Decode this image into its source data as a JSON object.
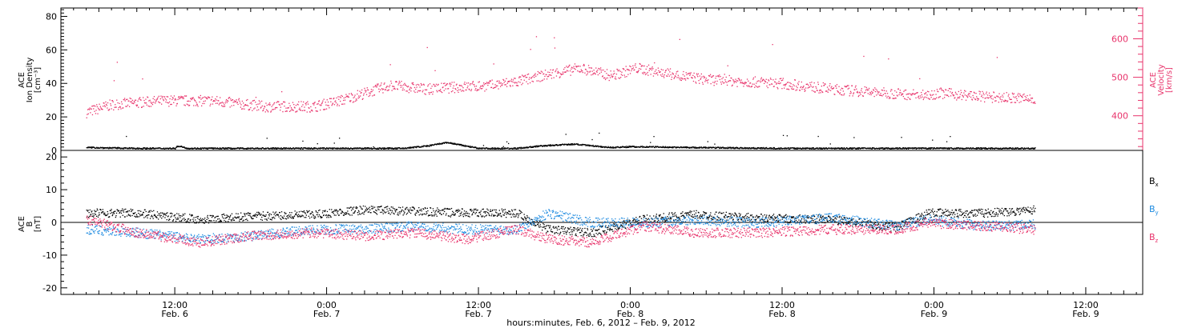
{
  "colors": {
    "black": "#000000",
    "pink": "#e8336b",
    "blue": "#1f8be0",
    "axis": "#000000"
  },
  "chart_data": [
    {
      "type": "scatter",
      "panel": "top",
      "ylabel_lines": [
        "ACE",
        "Ion Density",
        "[cm⁻³]"
      ],
      "ylabel_right_lines": [
        "ACE",
        "Velocity",
        "[km/s]"
      ],
      "ylim_left": [
        0,
        85
      ],
      "yticks_left": [
        0,
        20,
        40,
        60,
        80
      ],
      "ylim_right": [
        310,
        680
      ],
      "yticks_right": [
        400,
        500,
        600
      ],
      "series": [
        {
          "key": "density",
          "color": "black",
          "points": [
            [
              "2012-02-06T05:00",
              2
            ],
            [
              "2012-02-06T09:00",
              1.5
            ],
            [
              "2012-02-06T12:00",
              1.5
            ],
            [
              "2012-02-06T12:15",
              3
            ],
            [
              "2012-02-06T13:00",
              1.5
            ],
            [
              "2012-02-06T18:00",
              1.5
            ],
            [
              "2012-02-07T00:00",
              1.5
            ],
            [
              "2012-02-07T03:00",
              1.5
            ],
            [
              "2012-02-07T06:00",
              1.5
            ],
            [
              "2012-02-07T08:00",
              3
            ],
            [
              "2012-02-07T09:30",
              5
            ],
            [
              "2012-02-07T12:00",
              1.5
            ],
            [
              "2012-02-07T15:00",
              1.5
            ],
            [
              "2012-02-07T17:00",
              3
            ],
            [
              "2012-02-07T19:30",
              4
            ],
            [
              "2012-02-07T22:30",
              2
            ],
            [
              "2012-02-08T00:00",
              2.5
            ],
            [
              "2012-02-08T05:00",
              2
            ],
            [
              "2012-02-08T12:00",
              1.5
            ],
            [
              "2012-02-08T16:30",
              1.5
            ],
            [
              "2012-02-08T23:30",
              1.5
            ],
            [
              "2012-02-09T08:00",
              1.5
            ]
          ]
        }
      ],
      "velocity_series": {
        "key": "velocity",
        "color": "pink",
        "points": [
          [
            "2012-02-06T05:00",
            410
          ],
          [
            "2012-02-06T07:00",
            430
          ],
          [
            "2012-02-06T11:00",
            440
          ],
          [
            "2012-02-06T15:00",
            440
          ],
          [
            "2012-02-06T19:00",
            425
          ],
          [
            "2012-02-06T23:00",
            425
          ],
          [
            "2012-02-07T01:00",
            440
          ],
          [
            "2012-02-07T03:00",
            460
          ],
          [
            "2012-02-07T05:00",
            480
          ],
          [
            "2012-02-07T08:00",
            470
          ],
          [
            "2012-02-07T10:00",
            475
          ],
          [
            "2012-02-07T13:00",
            480
          ],
          [
            "2012-02-07T15:00",
            490
          ],
          [
            "2012-02-07T17:00",
            505
          ],
          [
            "2012-02-07T20:00",
            525
          ],
          [
            "2012-02-07T22:30",
            505
          ],
          [
            "2012-02-08T00:30",
            525
          ],
          [
            "2012-02-08T03:00",
            510
          ],
          [
            "2012-02-08T06:00",
            495
          ],
          [
            "2012-02-08T09:00",
            490
          ],
          [
            "2012-02-08T12:00",
            485
          ],
          [
            "2012-02-08T16:00",
            470
          ],
          [
            "2012-02-08T20:00",
            460
          ],
          [
            "2012-02-08T23:00",
            455
          ],
          [
            "2012-02-09T00:30",
            460
          ],
          [
            "2012-02-09T04:00",
            450
          ],
          [
            "2012-02-09T08:00",
            445
          ]
        ]
      }
    },
    {
      "type": "scatter",
      "panel": "bottom",
      "ylabel_lines": [
        "ACE",
        "B",
        "[nT]"
      ],
      "ylim": [
        -22,
        22
      ],
      "yticks": [
        -20,
        -10,
        0,
        10,
        20
      ],
      "zero_line": true,
      "series": [
        {
          "key": "bx",
          "name": "Bx",
          "color": "black",
          "points": [
            [
              "2012-02-06T05:00",
              3
            ],
            [
              "2012-02-06T09:00",
              3
            ],
            [
              "2012-02-06T14:00",
              1
            ],
            [
              "2012-02-06T18:00",
              2
            ],
            [
              "2012-02-06T23:00",
              2.5
            ],
            [
              "2012-02-07T03:00",
              4
            ],
            [
              "2012-02-07T07:00",
              3.5
            ],
            [
              "2012-02-07T11:00",
              3
            ],
            [
              "2012-02-07T15:00",
              3
            ],
            [
              "2012-02-07T17:30",
              -2
            ],
            [
              "2012-02-07T21:00",
              -3
            ],
            [
              "2012-02-08T01:00",
              1
            ],
            [
              "2012-02-08T05:00",
              2.5
            ],
            [
              "2012-02-08T10:00",
              1.5
            ],
            [
              "2012-02-08T16:00",
              1
            ],
            [
              "2012-02-08T21:00",
              -1.5
            ],
            [
              "2012-02-08T23:30",
              3
            ],
            [
              "2012-02-09T04:00",
              3
            ],
            [
              "2012-02-09T08:00",
              4
            ]
          ]
        },
        {
          "key": "by",
          "name": "By",
          "color": "blue",
          "points": [
            [
              "2012-02-06T05:00",
              -2
            ],
            [
              "2012-02-06T09:00",
              -3
            ],
            [
              "2012-02-06T14:00",
              -5
            ],
            [
              "2012-02-06T18:00",
              -4
            ],
            [
              "2012-02-06T23:00",
              -2
            ],
            [
              "2012-02-07T03:00",
              -2
            ],
            [
              "2012-02-07T07:00",
              -1
            ],
            [
              "2012-02-07T11:00",
              -2
            ],
            [
              "2012-02-07T15:00",
              -2
            ],
            [
              "2012-02-07T17:30",
              3
            ],
            [
              "2012-02-07T21:00",
              0
            ],
            [
              "2012-02-08T01:00",
              0
            ],
            [
              "2012-02-08T05:00",
              1
            ],
            [
              "2012-02-08T10:00",
              0
            ],
            [
              "2012-02-08T16:00",
              1.5
            ],
            [
              "2012-02-08T21:00",
              -1
            ],
            [
              "2012-02-08T23:30",
              1
            ],
            [
              "2012-02-09T04:00",
              -1
            ],
            [
              "2012-02-09T08:00",
              -0.5
            ]
          ]
        },
        {
          "key": "bz",
          "name": "Bz",
          "color": "pink",
          "points": [
            [
              "2012-02-06T05:00",
              1
            ],
            [
              "2012-02-06T09:00",
              -3
            ],
            [
              "2012-02-06T14:00",
              -6
            ],
            [
              "2012-02-06T18:00",
              -4
            ],
            [
              "2012-02-06T23:00",
              -3
            ],
            [
              "2012-02-07T03:00",
              -4
            ],
            [
              "2012-02-07T07:00",
              -3
            ],
            [
              "2012-02-07T11:00",
              -5
            ],
            [
              "2012-02-07T15:00",
              -2
            ],
            [
              "2012-02-07T17:30",
              -5
            ],
            [
              "2012-02-07T21:00",
              -6
            ],
            [
              "2012-02-08T01:00",
              -1
            ],
            [
              "2012-02-08T05:00",
              -3
            ],
            [
              "2012-02-08T10:00",
              -3
            ],
            [
              "2012-02-08T16:00",
              -2
            ],
            [
              "2012-02-08T21:00",
              -2
            ],
            [
              "2012-02-08T23:30",
              0
            ],
            [
              "2012-02-09T04:00",
              -1
            ],
            [
              "2012-02-09T08:00",
              -2
            ]
          ]
        }
      ],
      "legend": [
        {
          "label": "B",
          "sub": "x",
          "color": "black"
        },
        {
          "label": "B",
          "sub": "y",
          "color": "blue"
        },
        {
          "label": "B",
          "sub": "z",
          "color": "pink"
        }
      ]
    }
  ],
  "x_axis": {
    "start": "2012-02-06T03:00",
    "end": "2012-02-09T16:30",
    "ticks": [
      {
        "time": "2012-02-06T12:00",
        "label": "12:00",
        "date": "Feb. 6"
      },
      {
        "time": "2012-02-07T00:00",
        "label": "0:00",
        "date": "Feb. 7"
      },
      {
        "time": "2012-02-07T12:00",
        "label": "12:00",
        "date": "Feb. 7"
      },
      {
        "time": "2012-02-08T00:00",
        "label": "0:00",
        "date": "Feb. 8"
      },
      {
        "time": "2012-02-08T12:00",
        "label": "12:00",
        "date": "Feb. 8"
      },
      {
        "time": "2012-02-09T00:00",
        "label": "0:00",
        "date": "Feb. 9"
      },
      {
        "time": "2012-02-09T12:00",
        "label": "12:00",
        "date": "Feb. 9"
      }
    ],
    "title": "hours:minutes, Feb.  6, 2012 – Feb.  9, 2012"
  }
}
